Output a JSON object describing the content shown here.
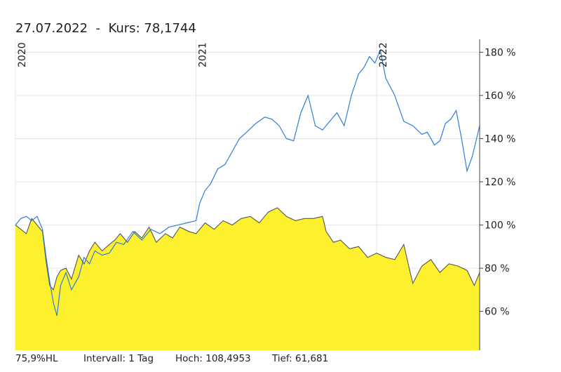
{
  "header": {
    "date": "27.07.2022",
    "separator": "-",
    "kurs_label": "Kurs:",
    "kurs_value": "78,1744"
  },
  "footer": {
    "left": "75,9%HL",
    "interval": "Intervall: 1 Tag",
    "high": "Hoch: 108,4953",
    "low": "Tief:  61,681"
  },
  "colors": {
    "area_fill": "#fdf02f",
    "area_line": "#555555",
    "line": "#2f7ed8",
    "grid": "#e4e4e4",
    "axis": "#444444"
  },
  "chart_data": {
    "type": "area",
    "y_unit": "%",
    "ylim": [
      42,
      186
    ],
    "y_ticks": [
      {
        "value": 60,
        "label": "60 %"
      },
      {
        "value": 80,
        "label": "80 %"
      },
      {
        "value": 100,
        "label": "100 %"
      },
      {
        "value": 120,
        "label": "120 %"
      },
      {
        "value": 140,
        "label": "140 %"
      },
      {
        "value": 160,
        "label": "160 %"
      },
      {
        "value": 180,
        "label": "180 %"
      }
    ],
    "xlim": [
      2020.0,
      2022.57
    ],
    "x_year_labels": [
      {
        "value": 2020.0,
        "label": "2020"
      },
      {
        "value": 2021.0,
        "label": "2021"
      },
      {
        "value": 2022.0,
        "label": "2022"
      }
    ],
    "grid": true,
    "series": [
      {
        "style": "area",
        "x": [
          2020.0,
          2020.03,
          2020.06,
          2020.09,
          2020.12,
          2020.15,
          2020.17,
          2020.19,
          2020.21,
          2020.23,
          2020.25,
          2020.28,
          2020.31,
          2020.35,
          2020.38,
          2020.41,
          2020.44,
          2020.48,
          2020.52,
          2020.55,
          2020.58,
          2020.62,
          2020.66,
          2020.7,
          2020.74,
          2020.78,
          2020.83,
          2020.87,
          2020.91,
          2020.96,
          2021.0,
          2021.05,
          2021.1,
          2021.15,
          2021.2,
          2021.25,
          2021.3,
          2021.35,
          2021.4,
          2021.45,
          2021.5,
          2021.55,
          2021.6,
          2021.65,
          2021.7,
          2021.72,
          2021.76,
          2021.8,
          2021.85,
          2021.9,
          2021.95,
          2022.0,
          2022.05,
          2022.1,
          2022.15,
          2022.18,
          2022.2,
          2022.25,
          2022.3,
          2022.35,
          2022.4,
          2022.45,
          2022.5,
          2022.54,
          2022.57
        ],
        "values": [
          100,
          98,
          96,
          103,
          100,
          97,
          83,
          72,
          70,
          76,
          79,
          80,
          75,
          86,
          82,
          88,
          92,
          88,
          91,
          93,
          96,
          92,
          97,
          94,
          99,
          92,
          96,
          94,
          99,
          97,
          96,
          101,
          98,
          102,
          100,
          103,
          104,
          101,
          106,
          108,
          104,
          102,
          103,
          103,
          104,
          97,
          92,
          93,
          89,
          90,
          85,
          87,
          85,
          84,
          91,
          80,
          73,
          81,
          84,
          78,
          82,
          81,
          79,
          72,
          78
        ]
      },
      {
        "style": "line",
        "x": [
          2020.0,
          2020.03,
          2020.06,
          2020.09,
          2020.12,
          2020.15,
          2020.17,
          2020.19,
          2020.21,
          2020.23,
          2020.25,
          2020.28,
          2020.31,
          2020.35,
          2020.38,
          2020.41,
          2020.44,
          2020.48,
          2020.52,
          2020.56,
          2020.6,
          2020.65,
          2020.7,
          2020.75,
          2020.8,
          2020.85,
          2020.9,
          2020.95,
          2021.0,
          2021.02,
          2021.05,
          2021.08,
          2021.12,
          2021.16,
          2021.2,
          2021.24,
          2021.28,
          2021.33,
          2021.38,
          2021.42,
          2021.46,
          2021.5,
          2021.54,
          2021.58,
          2021.62,
          2021.66,
          2021.7,
          2021.74,
          2021.78,
          2021.82,
          2021.86,
          2021.9,
          2021.93,
          2021.96,
          2021.99,
          2022.02,
          2022.05,
          2022.1,
          2022.15,
          2022.2,
          2022.25,
          2022.28,
          2022.32,
          2022.35,
          2022.38,
          2022.41,
          2022.44,
          2022.47,
          2022.5,
          2022.53,
          2022.57
        ],
        "values": [
          100,
          103,
          104,
          102,
          104,
          98,
          85,
          74,
          64,
          58,
          72,
          78,
          70,
          76,
          85,
          82,
          88,
          86,
          87,
          92,
          91,
          97,
          93,
          98,
          96,
          99,
          100,
          101,
          102,
          110,
          116,
          119,
          126,
          128,
          134,
          140,
          143,
          147,
          150,
          149,
          146,
          140,
          139,
          152,
          160,
          146,
          144,
          148,
          152,
          146,
          160,
          170,
          173,
          178,
          175,
          181,
          168,
          160,
          148,
          146,
          142,
          143,
          137,
          139,
          147,
          149,
          153,
          140,
          125,
          132,
          146
        ]
      }
    ]
  }
}
